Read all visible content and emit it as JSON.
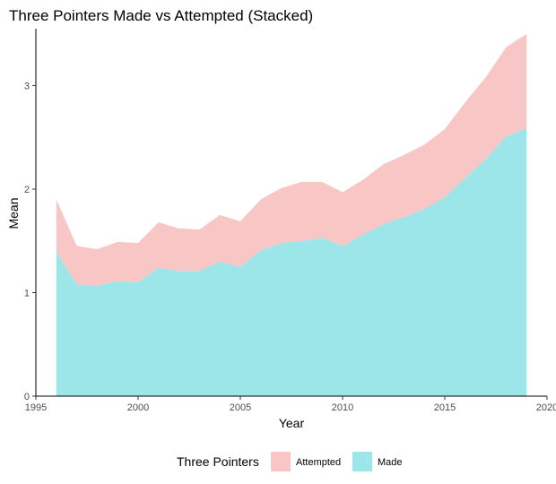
{
  "chart_data": {
    "type": "area",
    "stacked": true,
    "title": "Three Pointers Made vs Attempted (Stacked)",
    "xlabel": "Year",
    "ylabel": "Mean",
    "xlim": [
      1995,
      2020
    ],
    "ylim": [
      0,
      3.55
    ],
    "x_ticks": [
      1995,
      2000,
      2005,
      2010,
      2015,
      2020
    ],
    "y_ticks": [
      0,
      1,
      2,
      3
    ],
    "grid": false,
    "legend": {
      "title": "Three Pointers",
      "position": "bottom",
      "entries": [
        "Attempted",
        "Made"
      ]
    },
    "x": [
      1996,
      1997,
      1998,
      1999,
      2000,
      2001,
      2002,
      2003,
      2004,
      2005,
      2006,
      2007,
      2008,
      2009,
      2010,
      2011,
      2012,
      2013,
      2014,
      2015,
      2016,
      2017,
      2018,
      2019
    ],
    "series": [
      {
        "name": "Made",
        "color": "#9ce5e8",
        "values": [
          1.4,
          1.08,
          1.07,
          1.11,
          1.1,
          1.24,
          1.21,
          1.21,
          1.3,
          1.25,
          1.41,
          1.48,
          1.5,
          1.53,
          1.45,
          1.56,
          1.66,
          1.73,
          1.81,
          1.92,
          2.11,
          2.29,
          2.51,
          2.59
        ]
      },
      {
        "name": "Attempted",
        "color": "#f8c6c4",
        "values": [
          0.5,
          0.37,
          0.35,
          0.38,
          0.38,
          0.44,
          0.41,
          0.4,
          0.45,
          0.44,
          0.49,
          0.53,
          0.57,
          0.54,
          0.52,
          0.53,
          0.58,
          0.6,
          0.62,
          0.66,
          0.73,
          0.79,
          0.86,
          0.91
        ]
      }
    ]
  }
}
